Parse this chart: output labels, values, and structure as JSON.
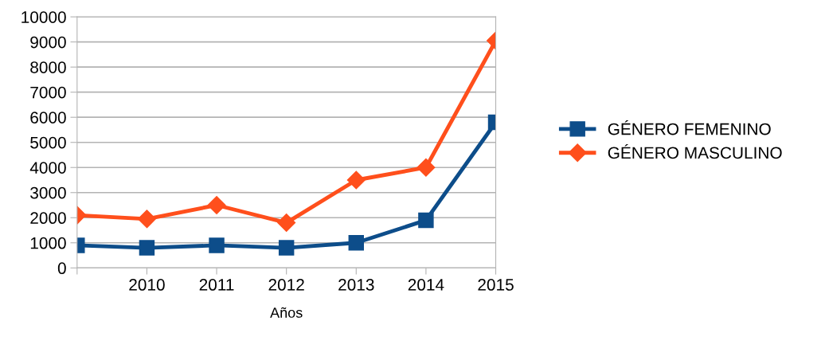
{
  "chart_data": {
    "type": "line",
    "xlabel": "Años",
    "categories": [
      null,
      "2010",
      "2011",
      "2012",
      "2013",
      "2014",
      "2015"
    ],
    "series": [
      {
        "name": "GÉNERO FEMENINO",
        "color": "#0d4d8a",
        "marker": "square",
        "values": [
          900,
          800,
          900,
          800,
          1000,
          1900,
          5800
        ]
      },
      {
        "name": "GÉNERO MASCULINO",
        "color": "#ff4f1c",
        "marker": "diamond",
        "values": [
          2100,
          1950,
          2500,
          1800,
          3500,
          4000,
          9050
        ]
      }
    ],
    "ylim": [
      0,
      10000
    ],
    "yticks": [
      0,
      1000,
      2000,
      3000,
      4000,
      5000,
      6000,
      7000,
      8000,
      9000,
      10000
    ],
    "grid": "y",
    "legend": "right",
    "line_style": "solid"
  }
}
